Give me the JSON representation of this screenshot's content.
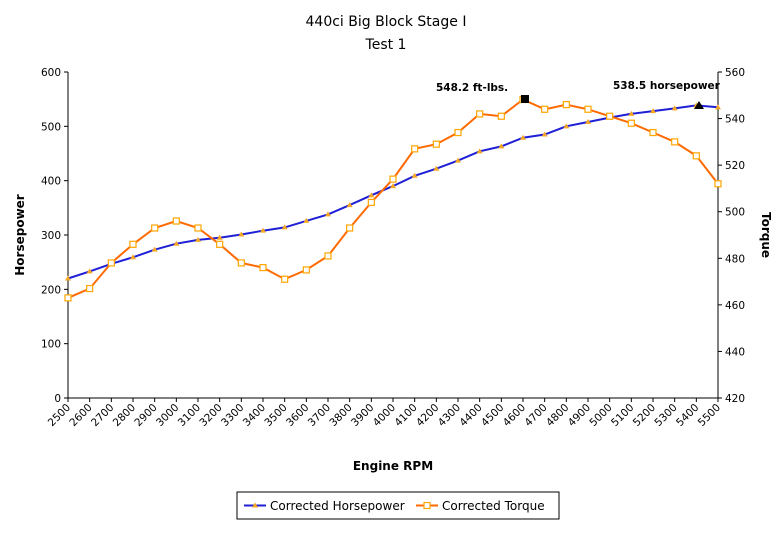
{
  "chart_data": {
    "type": "line",
    "title": "440ci Big Block Stage I",
    "subtitle": "Test 1",
    "xlabel": "Engine RPM",
    "ylabel_left": "Horsepower",
    "ylabel_right": "Torque",
    "categories": [
      2500,
      2600,
      2700,
      2800,
      2900,
      3000,
      3100,
      3200,
      3300,
      3400,
      3500,
      3600,
      3700,
      3800,
      3900,
      4000,
      4100,
      4200,
      4300,
      4400,
      4500,
      4600,
      4700,
      4800,
      4900,
      5000,
      5100,
      5200,
      5300,
      5400,
      5500
    ],
    "ylim_left": [
      0,
      600
    ],
    "ylim_right": [
      420,
      560
    ],
    "yticks_left": [
      0,
      100,
      200,
      300,
      400,
      500,
      600
    ],
    "yticks_right": [
      420,
      440,
      460,
      480,
      500,
      520,
      540,
      560
    ],
    "grid": false,
    "legend_position": "bottom",
    "series": [
      {
        "name": "Corrected Horsepower",
        "axis": "left",
        "color": "#1f1fd6",
        "marker_color": "#f5a623",
        "values": [
          220,
          233,
          247,
          259,
          273,
          284,
          291,
          295,
          301,
          308,
          314,
          326,
          338,
          355,
          373,
          390,
          409,
          422,
          437,
          454,
          463,
          479,
          485,
          500,
          508,
          516,
          523,
          528,
          533,
          538.5,
          535
        ]
      },
      {
        "name": "Corrected Torque",
        "axis": "right",
        "color": "#ff6a00",
        "marker_color": "#ffa500",
        "values": [
          463,
          467,
          478,
          486,
          493,
          496,
          493,
          486,
          478,
          476,
          471,
          475,
          481,
          493,
          504,
          514,
          527,
          529,
          534,
          542,
          541,
          548.2,
          544,
          546,
          544,
          541,
          538,
          534,
          530,
          524,
          512
        ]
      }
    ],
    "annotations": [
      {
        "text": "548.2 ft-lbs.",
        "series": "Corrected Torque",
        "x": 4600,
        "y": 548.2
      },
      {
        "text": "538.5 horsepower",
        "series": "Corrected Horsepower",
        "x": 5400,
        "y": 538.5
      }
    ]
  }
}
